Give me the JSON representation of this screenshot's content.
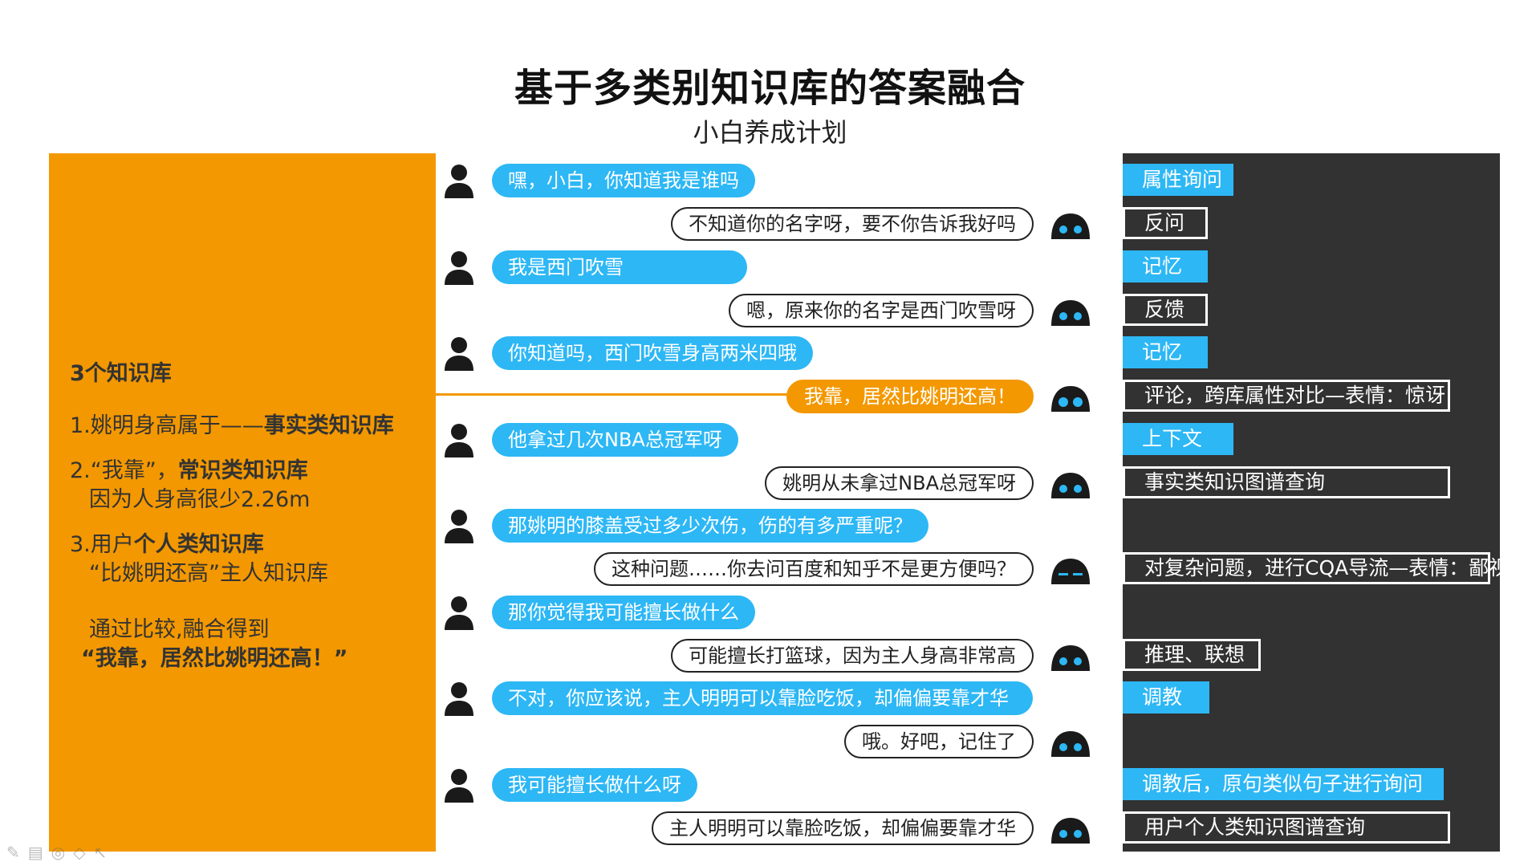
{
  "header": {
    "title": "基于多类别知识库的答案融合",
    "subtitle": "小白养成计划"
  },
  "left_panel": {
    "heading": "3个知识库",
    "line1_prefix": "1.姚明身高属于",
    "line1_dash": "——",
    "line1_bold": "事实类知识库",
    "line2_prefix": "2.“我靠”，",
    "line2_bold": "常识类知识库",
    "line2_sub": "因为人身高很少2.26m",
    "line3_prefix": "3.用户",
    "line3_bold": "个人类知识库",
    "line3_sub": "“比姚明还高”主人知识库",
    "conclusion_1": "通过比较,融合得到",
    "conclusion_2": "“我靠，居然比姚明还高！”"
  },
  "chat": {
    "user_1": "嘿，小白，你知道我是谁吗",
    "bot_1": "不知道你的名字呀，要不你告诉我好吗",
    "user_2": "我是西门吹雪",
    "bot_2": "嗯，原来你的名字是西门吹雪呀",
    "user_3": "你知道吗，西门吹雪身高两米四哦",
    "bot_3": "我靠，居然比姚明还高！",
    "user_4": "他拿过几次NBA总冠军呀",
    "bot_4": "姚明从未拿过NBA总冠军呀",
    "user_5": "那姚明的膝盖受过多少次伤，伤的有多严重呢？",
    "bot_5": "这种问题……你去问百度和知乎不是更方便吗？",
    "user_6": "那你觉得我可能擅长做什么",
    "bot_6": "可能擅长打篮球，因为主人身高非常高",
    "user_7": "不对，你应该说，主人明明可以靠脸吃饭，却偏偏要靠才华",
    "bot_7": "哦。好吧，记住了",
    "user_8": "我可能擅长做什么呀",
    "bot_8": "主人明明可以靠脸吃饭，却偏偏要靠才华"
  },
  "tags": {
    "t1": "属性询问",
    "t2": "反问",
    "t3": "记忆",
    "t4": "反馈",
    "t5": "记忆",
    "t6": "评论，跨库属性对比—表情：惊讶",
    "t7": "上下文",
    "t8": "事实类知识图谱查询",
    "t9": "对复杂问题，进行CQA导流—表情：鄙视",
    "t10": "推理、联想",
    "t11": "调教",
    "t12": "调教后，原句类似句子进行询问",
    "t13": "用户个人类知识图谱查询"
  },
  "colors": {
    "orange": "#f39800",
    "blue": "#2db7f5",
    "dark": "#323232"
  }
}
